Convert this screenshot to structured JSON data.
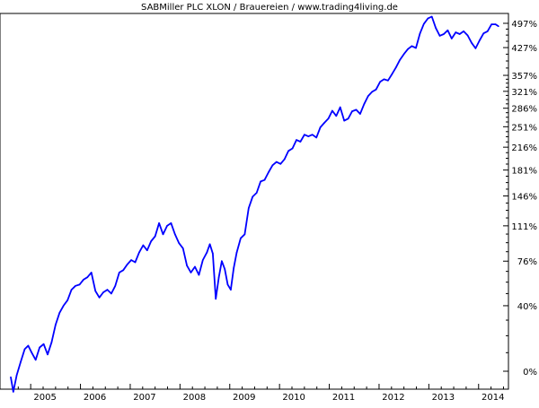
{
  "chart_data": {
    "type": "line",
    "title": "SABMiller PLC XLON / Brauereien / www.trading4living.de",
    "xlabel": "",
    "ylabel": "",
    "y_scale": "log",
    "y_unit": "% change",
    "ylim": [
      -12,
      520
    ],
    "xlim": [
      2004.6,
      2014.7
    ],
    "grid": false,
    "line_color": "#0000ff",
    "x_ticks": [
      {
        "value": 2005.0,
        "label": "2005"
      },
      {
        "value": 2006.0,
        "label": "2006"
      },
      {
        "value": 2007.0,
        "label": "2007"
      },
      {
        "value": 2008.0,
        "label": "2008"
      },
      {
        "value": 2009.0,
        "label": "2009"
      },
      {
        "value": 2010.0,
        "label": "2010"
      },
      {
        "value": 2011.0,
        "label": "2011"
      },
      {
        "value": 2012.0,
        "label": "2012"
      },
      {
        "value": 2013.0,
        "label": "2013"
      },
      {
        "value": 2014.0,
        "label": "2014"
      }
    ],
    "y_ticks": [
      {
        "value": 0,
        "label": "0%"
      },
      {
        "value": 40,
        "label": "40%"
      },
      {
        "value": 76,
        "label": "76%"
      },
      {
        "value": 111,
        "label": "111%"
      },
      {
        "value": 146,
        "label": "146%"
      },
      {
        "value": 181,
        "label": "181%"
      },
      {
        "value": 216,
        "label": "216%"
      },
      {
        "value": 251,
        "label": "251%"
      },
      {
        "value": 286,
        "label": "286%"
      },
      {
        "value": 321,
        "label": "321%"
      },
      {
        "value": 357,
        "label": "357%"
      },
      {
        "value": 427,
        "label": "427%"
      },
      {
        "value": 497,
        "label": "497%"
      }
    ],
    "series": [
      {
        "x": [
          2004.6,
          2004.65,
          2004.72,
          2004.8,
          2004.88,
          2004.95,
          2005.02,
          2005.1,
          2005.18,
          2005.26,
          2005.34,
          2005.42,
          2005.5,
          2005.58,
          2005.66,
          2005.74,
          2005.82,
          2005.9,
          2005.98,
          2006.06,
          2006.14,
          2006.22,
          2006.3,
          2006.38,
          2006.46,
          2006.54,
          2006.62,
          2006.7,
          2006.78,
          2006.86,
          2006.94,
          2007.02,
          2007.1,
          2007.18,
          2007.26,
          2007.34,
          2007.42,
          2007.5,
          2007.58,
          2007.66,
          2007.74,
          2007.82,
          2007.9,
          2007.98,
          2008.06,
          2008.14,
          2008.22,
          2008.3,
          2008.38,
          2008.46,
          2008.54,
          2008.6,
          2008.66,
          2008.72,
          2008.78,
          2008.84,
          2008.9,
          2008.96,
          2009.02,
          2009.08,
          2009.14,
          2009.22,
          2009.3,
          2009.38,
          2009.46,
          2009.54,
          2009.62,
          2009.7,
          2009.78,
          2009.86,
          2009.94,
          2010.02,
          2010.1,
          2010.18,
          2010.26,
          2010.34,
          2010.42,
          2010.5,
          2010.58,
          2010.66,
          2010.74,
          2010.82,
          2010.9,
          2010.98,
          2011.06,
          2011.14,
          2011.22,
          2011.3,
          2011.38,
          2011.46,
          2011.54,
          2011.62,
          2011.7,
          2011.78,
          2011.86,
          2011.94,
          2012.02,
          2012.1,
          2012.18,
          2012.26,
          2012.34,
          2012.42,
          2012.5,
          2012.58,
          2012.66,
          2012.74,
          2012.82,
          2012.9,
          2012.98,
          2013.06,
          2013.14,
          2013.22,
          2013.3,
          2013.38,
          2013.46,
          2013.54,
          2013.62,
          2013.7,
          2013.78,
          2013.86,
          2013.94,
          2014.02,
          2014.1,
          2014.18,
          2014.26,
          2014.34,
          2014.4
        ],
        "values": [
          -3,
          -10,
          -2,
          5,
          12,
          14,
          10,
          6,
          13,
          15,
          9,
          16,
          27,
          35,
          40,
          44,
          52,
          55,
          56,
          60,
          62,
          66,
          51,
          46,
          50,
          52,
          49,
          55,
          66,
          68,
          73,
          77,
          75,
          84,
          91,
          86,
          95,
          100,
          114,
          102,
          111,
          114,
          102,
          93,
          88,
          72,
          66,
          71,
          64,
          77,
          84,
          92,
          83,
          45,
          62,
          76,
          69,
          56,
          52,
          70,
          84,
          98,
          102,
          131,
          145,
          150,
          165,
          167,
          178,
          188,
          193,
          190,
          197,
          210,
          214,
          228,
          225,
          237,
          234,
          237,
          232,
          250,
          258,
          266,
          281,
          271,
          288,
          262,
          266,
          280,
          283,
          275,
          294,
          311,
          320,
          325,
          342,
          348,
          345,
          360,
          376,
          395,
          410,
          423,
          431,
          426,
          466,
          495,
          512,
          518,
          483,
          460,
          465,
          476,
          452,
          470,
          465,
          473,
          461,
          440,
          425,
          447,
          467,
          473,
          494,
          494,
          488
        ]
      }
    ]
  }
}
